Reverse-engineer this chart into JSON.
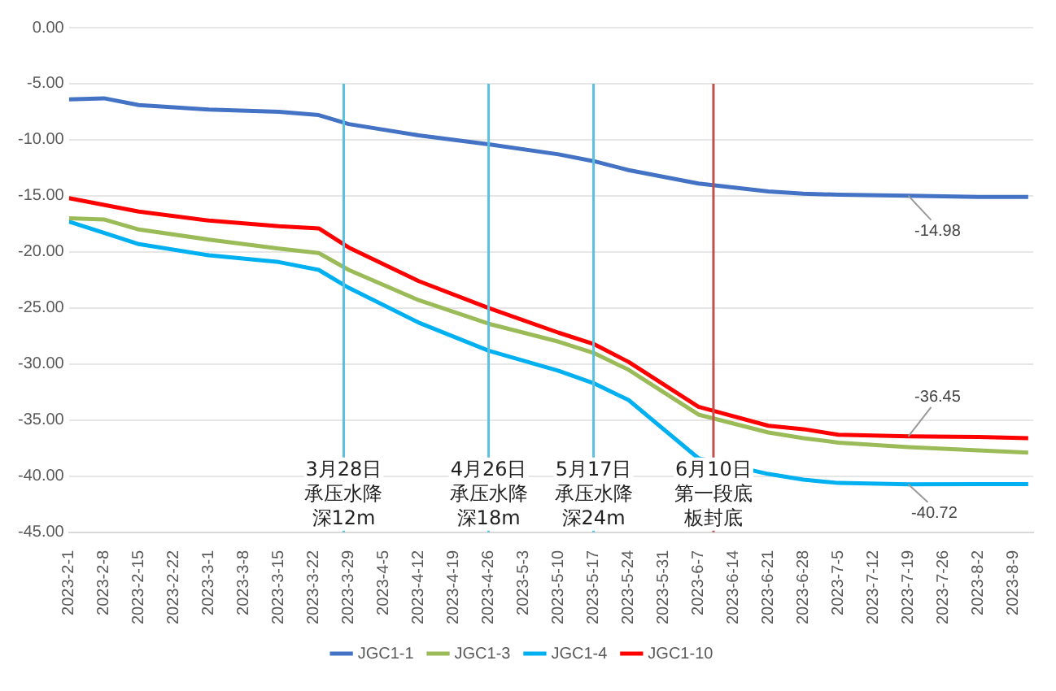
{
  "chart_data": {
    "type": "line",
    "x": [
      "2023-02-01",
      "2023-02-08",
      "2023-02-15",
      "2023-03-01",
      "2023-03-15",
      "2023-03-23",
      "2023-03-29",
      "2023-04-12",
      "2023-04-26",
      "2023-05-10",
      "2023-05-17",
      "2023-05-24",
      "2023-06-07",
      "2023-06-21",
      "2023-06-28",
      "2023-07-05",
      "2023-07-19",
      "2023-08-02",
      "2023-08-12"
    ],
    "series": [
      {
        "name": "JGC1-1",
        "color": "#4472c4",
        "values": [
          -6.4,
          -6.3,
          -6.9,
          -7.3,
          -7.5,
          -7.8,
          -8.6,
          -9.6,
          -10.4,
          -11.3,
          -11.9,
          -12.7,
          -13.9,
          -14.6,
          -14.8,
          -14.9,
          -14.98,
          -15.1,
          -15.1
        ]
      },
      {
        "name": "JGC1-3",
        "color": "#9bbb59",
        "values": [
          -17.0,
          -17.1,
          -18.0,
          -18.9,
          -19.7,
          -20.1,
          -21.6,
          -24.3,
          -26.4,
          -28.0,
          -29.0,
          -30.5,
          -34.5,
          -36.1,
          -36.6,
          -37.0,
          -37.4,
          -37.7,
          -37.9
        ]
      },
      {
        "name": "JGC1-4",
        "color": "#00b0f0",
        "values": [
          -17.3,
          -18.3,
          -19.3,
          -20.3,
          -20.9,
          -21.6,
          -23.2,
          -26.3,
          -28.8,
          -30.6,
          -31.7,
          -33.2,
          -38.4,
          -39.8,
          -40.3,
          -40.6,
          -40.72,
          -40.7,
          -40.7
        ]
      },
      {
        "name": "JGC1-10",
        "color": "#ff0000",
        "values": [
          -15.2,
          -15.8,
          -16.4,
          -17.2,
          -17.7,
          -17.9,
          -19.6,
          -22.6,
          -25.0,
          -27.2,
          -28.2,
          -29.8,
          -33.8,
          -35.5,
          -35.8,
          -36.3,
          -36.45,
          -36.5,
          -36.6
        ]
      }
    ],
    "xlim": [
      "2023-02-01",
      "2023-08-13"
    ],
    "xticks": [
      {
        "value": "2023-02-01",
        "label": "2023-2-1"
      },
      {
        "value": "2023-02-08",
        "label": "2023-2-8"
      },
      {
        "value": "2023-02-15",
        "label": "2023-2-15"
      },
      {
        "value": "2023-02-22",
        "label": "2023-2-22"
      },
      {
        "value": "2023-03-01",
        "label": "2023-3-1"
      },
      {
        "value": "2023-03-08",
        "label": "2023-3-8"
      },
      {
        "value": "2023-03-15",
        "label": "2023-3-15"
      },
      {
        "value": "2023-03-22",
        "label": "2023-3-22"
      },
      {
        "value": "2023-03-29",
        "label": "2023-3-29"
      },
      {
        "value": "2023-04-05",
        "label": "2023-4-5"
      },
      {
        "value": "2023-04-12",
        "label": "2023-4-12"
      },
      {
        "value": "2023-04-19",
        "label": "2023-4-19"
      },
      {
        "value": "2023-04-26",
        "label": "2023-4-26"
      },
      {
        "value": "2023-05-03",
        "label": "2023-5-3"
      },
      {
        "value": "2023-05-10",
        "label": "2023-5-10"
      },
      {
        "value": "2023-05-17",
        "label": "2023-5-17"
      },
      {
        "value": "2023-05-24",
        "label": "2023-5-24"
      },
      {
        "value": "2023-05-31",
        "label": "2023-5-31"
      },
      {
        "value": "2023-06-07",
        "label": "2023-6-7"
      },
      {
        "value": "2023-06-14",
        "label": "2023-6-14"
      },
      {
        "value": "2023-06-21",
        "label": "2023-6-21"
      },
      {
        "value": "2023-06-28",
        "label": "2023-6-28"
      },
      {
        "value": "2023-07-05",
        "label": "2023-7-5"
      },
      {
        "value": "2023-07-12",
        "label": "2023-7-12"
      },
      {
        "value": "2023-07-19",
        "label": "2023-7-19"
      },
      {
        "value": "2023-07-26",
        "label": "2023-7-26"
      },
      {
        "value": "2023-08-02",
        "label": "2023-8-2"
      },
      {
        "value": "2023-08-09",
        "label": "2023-8-9"
      }
    ],
    "ylim": [
      -45,
      0
    ],
    "yticks": [
      {
        "value": 0,
        "label": "0.00"
      },
      {
        "value": -5,
        "label": "-5.00"
      },
      {
        "value": -10,
        "label": "-10.00"
      },
      {
        "value": -15,
        "label": "-15.00"
      },
      {
        "value": -20,
        "label": "-20.00"
      },
      {
        "value": -25,
        "label": "-25.00"
      },
      {
        "value": -30,
        "label": "-30.00"
      },
      {
        "value": -35,
        "label": "-35.00"
      },
      {
        "value": -40,
        "label": "-40.00"
      },
      {
        "value": -45,
        "label": "-45.00"
      }
    ],
    "ref_lines": [
      {
        "axis": "x",
        "value": "2023-03-28",
        "label": "3月28日承压水降深12m",
        "color": "#5bc0de"
      },
      {
        "axis": "x",
        "value": "2023-04-26",
        "label": "4月26日承压水降深18m",
        "color": "#5bc0de"
      },
      {
        "axis": "x",
        "value": "2023-05-17",
        "label": "5月17日承压水降深24m",
        "color": "#5bc0de"
      },
      {
        "axis": "x",
        "value": "2023-06-10",
        "label": "6月10日第一段底板封底",
        "color": "#c0504d"
      }
    ],
    "annotations": [
      {
        "text": "-14.98",
        "x": "2023-07-19",
        "y": -14.98
      },
      {
        "text": "-36.45",
        "x": "2023-07-19",
        "y": -36.45
      },
      {
        "text": "-40.72",
        "x": "2023-07-19",
        "y": -40.72
      }
    ],
    "grid": "y",
    "legend": "bottom",
    "marker": "none",
    "line_style": "solid"
  }
}
